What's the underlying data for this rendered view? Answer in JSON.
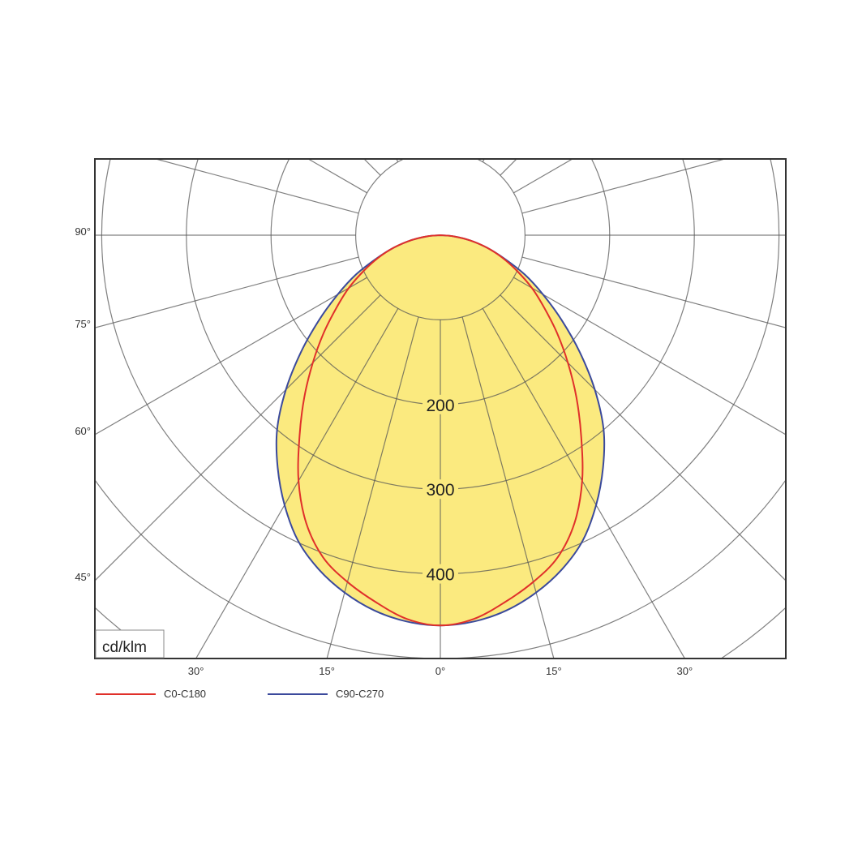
{
  "chart_data": {
    "type": "polar",
    "unit_label": "cd/klm",
    "angle_unit": "degrees",
    "radial_max": 600,
    "radial_rings": [
      100,
      200,
      300,
      400,
      500,
      600
    ],
    "ring_labels": [
      "200",
      "300",
      "400"
    ],
    "ring_label_values": [
      200,
      300,
      400
    ],
    "angle_step": 15,
    "left_tick_labels": [
      "90°",
      "75°",
      "60°",
      "45°"
    ],
    "left_tick_values": [
      90,
      75,
      60,
      45
    ],
    "bottom_tick_labels": [
      "30°",
      "15°",
      "0°",
      "15°",
      "30°"
    ],
    "bottom_tick_values": [
      -30,
      -15,
      0,
      15,
      30
    ],
    "angles": [
      0,
      5,
      10,
      15,
      20,
      25,
      30,
      35,
      40,
      45,
      50,
      55,
      60,
      65,
      70,
      75,
      80,
      85,
      90
    ],
    "series": [
      {
        "name": "C0-C180",
        "color": "#e0302a",
        "values": [
          461,
          455,
          440,
          424,
          405,
          375,
          335,
          290,
          250,
          213,
          180,
          150,
          125,
          100,
          78,
          57,
          36,
          16,
          0
        ]
      },
      {
        "name": "C90-C270",
        "color": "#3b4a9c",
        "values": [
          461,
          458,
          450,
          437,
          420,
          398,
          368,
          335,
          300,
          258,
          215,
          175,
          140,
          110,
          80,
          57,
          36,
          16,
          0
        ]
      }
    ],
    "fill_color": "#fbea7f",
    "legend_position": "bottom-left"
  }
}
